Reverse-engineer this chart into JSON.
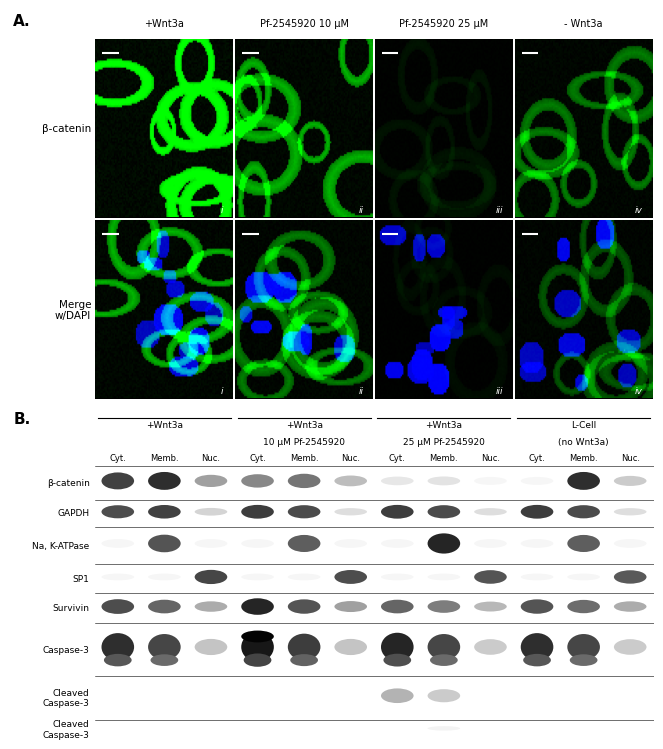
{
  "panel_A_label": "A.",
  "panel_B_label": "B.",
  "col_headers_A": [
    "+Wnt3a",
    "Pf-2545920 10 μM",
    "Pf-2545920 25 μM",
    "- Wnt3a"
  ],
  "row_labels_A": [
    "β-catenin",
    "Merge\nw/DAPI"
  ],
  "panel_numerals": [
    "i",
    "ii",
    "iii",
    "iv"
  ],
  "group_headers_B_line1": [
    "+Wnt3a",
    "+Wnt3a",
    "+Wnt3a",
    "L-Cell"
  ],
  "group_headers_B_line2": [
    "",
    "10 μM Pf-2545920",
    "25 μM Pf-2545920",
    "(no Wnt3a)"
  ],
  "sub_labels_B": [
    "Cyt.",
    "Memb.",
    "Nuc."
  ],
  "row_labels_B": [
    "β-catenin",
    "GAPDH",
    "Na, K-ATPase",
    "SP1",
    "Survivin",
    "Caspase-3",
    "Cleaved\nCaspase-3",
    "Cleaved\nCaspase-3"
  ],
  "row_bg_colors": [
    "#e2e2e2",
    "#e2e2e2",
    "#b0b0b0",
    "#cccccc",
    "#dedede",
    "#dedede",
    "#e5e5e5",
    "#b5b5b5"
  ],
  "band_intensities": [
    [
      [
        0.8,
        0.88,
        0.4
      ],
      [
        0.5,
        0.58,
        0.28
      ],
      [
        0.1,
        0.12,
        0.04
      ],
      [
        0.04,
        0.88,
        0.22
      ]
    ],
    [
      [
        0.75,
        0.8,
        0.18
      ],
      [
        0.82,
        0.76,
        0.14
      ],
      [
        0.82,
        0.76,
        0.14
      ],
      [
        0.82,
        0.76,
        0.14
      ]
    ],
    [
      [
        0.04,
        0.72,
        0.04
      ],
      [
        0.04,
        0.68,
        0.04
      ],
      [
        0.04,
        0.92,
        0.04
      ],
      [
        0.04,
        0.68,
        0.04
      ]
    ],
    [
      [
        0.04,
        0.04,
        0.78
      ],
      [
        0.04,
        0.04,
        0.75
      ],
      [
        0.04,
        0.04,
        0.72
      ],
      [
        0.04,
        0.04,
        0.7
      ]
    ],
    [
      [
        0.75,
        0.65,
        0.35
      ],
      [
        0.92,
        0.72,
        0.4
      ],
      [
        0.65,
        0.55,
        0.3
      ],
      [
        0.72,
        0.62,
        0.35
      ]
    ],
    [
      [
        0.88,
        0.78,
        0.25
      ],
      [
        0.98,
        0.82,
        0.25
      ],
      [
        0.92,
        0.78,
        0.22
      ],
      [
        0.88,
        0.78,
        0.22
      ]
    ],
    [
      [
        0.02,
        0.02,
        0.02
      ],
      [
        0.02,
        0.02,
        0.02
      ],
      [
        0.32,
        0.22,
        0.02
      ],
      [
        0.02,
        0.02,
        0.02
      ]
    ],
    [
      [
        0.02,
        0.02,
        0.02
      ],
      [
        0.02,
        0.02,
        0.02
      ],
      [
        0.02,
        0.05,
        0.02
      ],
      [
        0.02,
        0.02,
        0.02
      ]
    ]
  ],
  "figure_width": 6.5,
  "figure_height": 7.52
}
